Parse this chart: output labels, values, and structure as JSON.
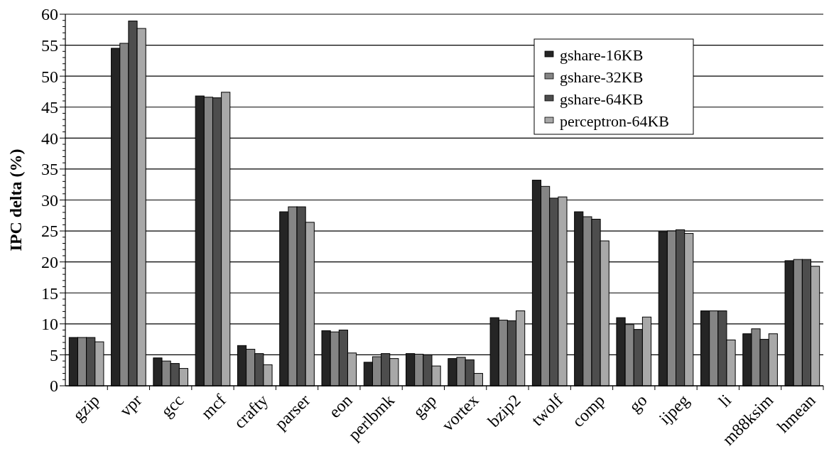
{
  "chart_data": {
    "type": "bar",
    "ylabel": "IPC delta (%)",
    "categories": [
      "gzip",
      "vpr",
      "gcc",
      "mcf",
      "crafty",
      "parser",
      "eon",
      "perlbmk",
      "gap",
      "vortex",
      "bzip2",
      "twolf",
      "comp",
      "go",
      "ijpeg",
      "li",
      "m88ksim",
      "hmean"
    ],
    "series": [
      {
        "name": "gshare-16KB",
        "color": "#252525",
        "values": [
          7.8,
          54.5,
          4.5,
          46.8,
          6.5,
          28.1,
          8.9,
          3.8,
          5.2,
          4.4,
          11.0,
          33.2,
          28.1,
          11.0,
          24.9,
          12.1,
          8.4,
          20.2
        ]
      },
      {
        "name": "gshare-32KB",
        "color": "#858585",
        "values": [
          7.8,
          55.3,
          4.0,
          46.6,
          5.9,
          28.9,
          8.7,
          4.7,
          5.1,
          4.6,
          10.6,
          32.2,
          27.3,
          9.9,
          25.0,
          12.1,
          9.2,
          20.4
        ]
      },
      {
        "name": "gshare-64KB",
        "color": "#4d4d4d",
        "values": [
          7.8,
          58.9,
          3.6,
          46.5,
          5.2,
          28.9,
          9.0,
          5.2,
          5.0,
          4.2,
          10.5,
          30.3,
          26.9,
          9.1,
          25.2,
          12.1,
          7.5,
          20.4
        ]
      },
      {
        "name": "perceptron-64KB",
        "color": "#a8a8a8",
        "values": [
          7.1,
          57.7,
          2.8,
          47.4,
          3.4,
          26.4,
          5.3,
          4.4,
          3.2,
          2.0,
          12.1,
          30.5,
          23.4,
          11.1,
          24.6,
          7.4,
          8.4,
          19.3
        ]
      }
    ],
    "ylim": [
      0,
      60
    ],
    "yticks": [
      0,
      {
        "value": 1,
        "label": null
      },
      {
        "value": 2,
        "label": null
      },
      {
        "value": 3,
        "label": null
      },
      {
        "value": 4,
        "label": null
      },
      5,
      {
        "value": 6,
        "label": null
      },
      {
        "value": 7,
        "label": null
      },
      {
        "value": 8,
        "label": null
      },
      {
        "value": 9,
        "label": null
      },
      10,
      {
        "value": 11,
        "label": null
      },
      {
        "value": 12,
        "label": null
      },
      {
        "value": 13,
        "label": null
      },
      {
        "value": 14,
        "label": null
      },
      15,
      {
        "value": 16,
        "label": null
      },
      {
        "value": 17,
        "label": null
      },
      {
        "value": 18,
        "label": null
      },
      {
        "value": 19,
        "label": null
      },
      20,
      {
        "value": 21,
        "label": null
      },
      {
        "value": 22,
        "label": null
      },
      {
        "value": 23,
        "label": null
      },
      {
        "value": 24,
        "label": null
      },
      25,
      {
        "value": 26,
        "label": null
      },
      {
        "value": 27,
        "label": null
      },
      {
        "value": 28,
        "label": null
      },
      {
        "value": 29,
        "label": null
      },
      30,
      {
        "value": 31,
        "label": null
      },
      {
        "value": 32,
        "label": null
      },
      {
        "value": 33,
        "label": null
      },
      {
        "value": 34,
        "label": null
      },
      35,
      {
        "value": 36,
        "label": null
      },
      {
        "value": 37,
        "label": null
      },
      {
        "value": 38,
        "label": null
      },
      {
        "value": 39,
        "label": null
      },
      40,
      {
        "value": 41,
        "label": null
      },
      {
        "value": 42,
        "label": null
      },
      {
        "value": 43,
        "label": null
      },
      {
        "value": 44,
        "label": null
      },
      45,
      {
        "value": 46,
        "label": null
      },
      {
        "value": 47,
        "label": null
      },
      {
        "value": 48,
        "label": null
      },
      {
        "value": 49,
        "label": null
      },
      50,
      {
        "value": 51,
        "label": null
      },
      {
        "value": 52,
        "label": null
      },
      {
        "value": 53,
        "label": null
      },
      {
        "value": 54,
        "label": null
      },
      55,
      {
        "value": 56,
        "label": null
      },
      {
        "value": 57,
        "label": null
      },
      {
        "value": 58,
        "label": null
      },
      {
        "value": 59,
        "label": null
      },
      60
    ],
    "grid": "y",
    "legend": "top right"
  }
}
